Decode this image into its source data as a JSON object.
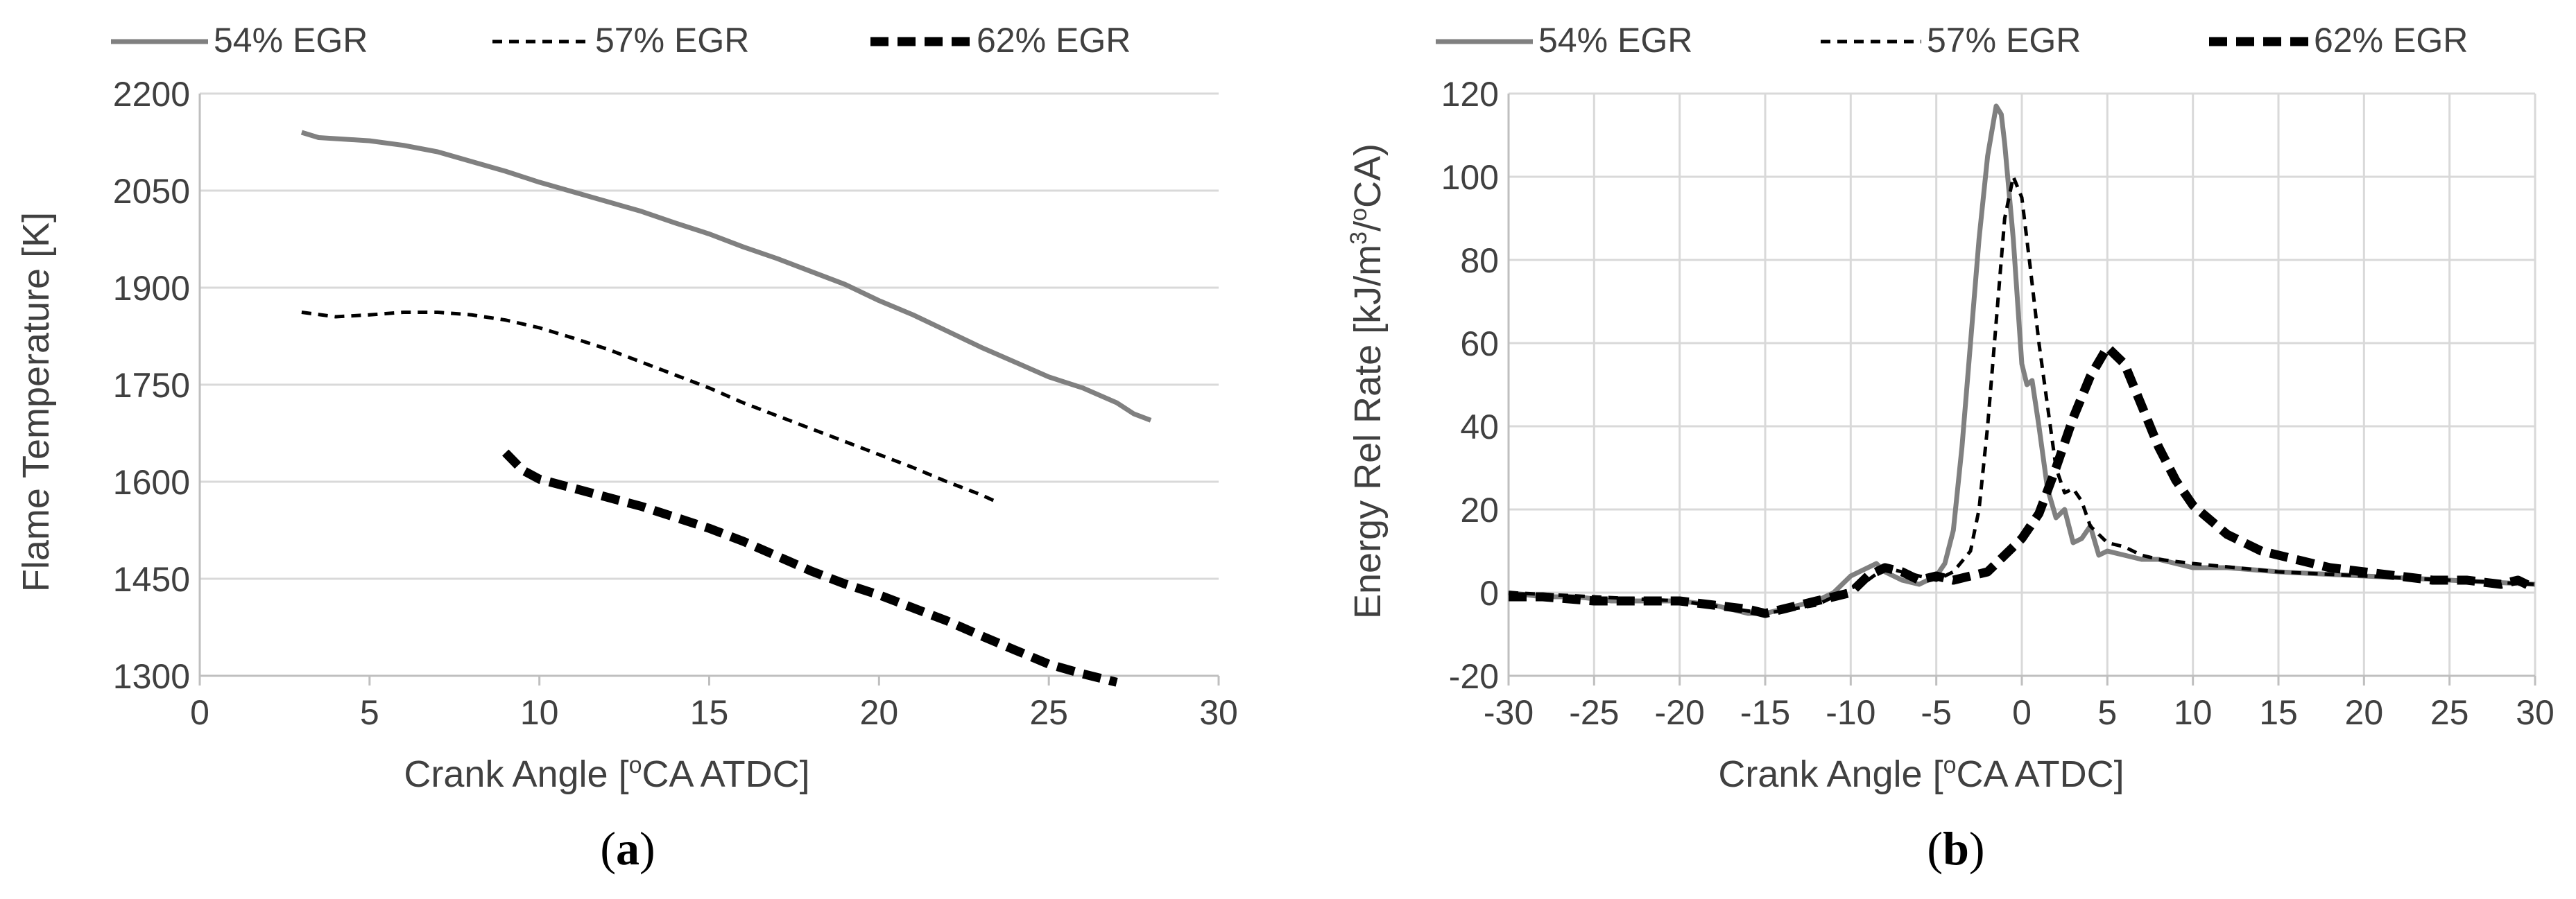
{
  "colors": {
    "series_54": "#808080",
    "series_57": "#000000",
    "series_62": "#000000",
    "grid": "#d9d9d9",
    "axis": "#bfbfbf",
    "text": "#404040"
  },
  "chart_data": [
    {
      "type": "line",
      "panel_label_open": "(",
      "panel_label_letter": "a",
      "panel_label_close": ")",
      "xlabel": "Crank Angle [",
      "xlabel_sup": "o",
      "xlabel_rest": "CA ATDC]",
      "ylabel": "Flame Temperature [K]",
      "xlim": [
        0,
        30
      ],
      "ylim": [
        1300,
        2200
      ],
      "xticks": [
        "0",
        "5",
        "10",
        "15",
        "20",
        "25",
        "30"
      ],
      "yticks": [
        "1300",
        "1450",
        "1600",
        "1750",
        "1900",
        "2050",
        "2200"
      ],
      "grid": "horizontal",
      "legend": "top",
      "series": [
        {
          "name": "54% EGR",
          "style": "solid-gray",
          "x": [
            3,
            3.5,
            5,
            6,
            7,
            8,
            9,
            10,
            11,
            12,
            13,
            14,
            15,
            16,
            17,
            18,
            19,
            20,
            21,
            22,
            23,
            24,
            25,
            26,
            27,
            27.5,
            28
          ],
          "y": [
            2140,
            2132,
            2127,
            2120,
            2110,
            2095,
            2080,
            2063,
            2048,
            2033,
            2018,
            2000,
            1983,
            1963,
            1945,
            1925,
            1905,
            1880,
            1858,
            1833,
            1808,
            1785,
            1762,
            1745,
            1722,
            1705,
            1695
          ]
        },
        {
          "name": "57% EGR",
          "style": "dashed-thin",
          "x": [
            3,
            4,
            5,
            6,
            7,
            8,
            9,
            10,
            11,
            12,
            13,
            14,
            15,
            16,
            17,
            18,
            19,
            20,
            21,
            22,
            23,
            23.5
          ],
          "y": [
            1862,
            1855,
            1858,
            1862,
            1862,
            1858,
            1850,
            1838,
            1822,
            1805,
            1785,
            1765,
            1745,
            1722,
            1702,
            1682,
            1662,
            1642,
            1622,
            1600,
            1580,
            1568
          ]
        },
        {
          "name": "62% EGR",
          "style": "dashed-thick",
          "x": [
            9,
            9.5,
            10,
            11,
            12,
            13,
            14,
            15,
            16,
            17,
            18,
            19,
            20,
            21,
            22,
            23,
            24,
            25,
            26,
            27
          ],
          "y": [
            1645,
            1618,
            1604,
            1590,
            1576,
            1562,
            1545,
            1528,
            1508,
            1485,
            1462,
            1442,
            1425,
            1405,
            1385,
            1362,
            1340,
            1318,
            1303,
            1290
          ]
        }
      ]
    },
    {
      "type": "line",
      "panel_label_open": "(",
      "panel_label_letter": "b",
      "panel_label_close": ")",
      "xlabel": "Crank Angle [",
      "xlabel_sup": "o",
      "xlabel_rest": "CA ATDC]",
      "ylabel_pre": "Energy Rel Rate [kJ/m",
      "ylabel_sup1": "3",
      "ylabel_mid": "/",
      "ylabel_sup2": "o",
      "ylabel_post": "CA)",
      "xlim": [
        -30,
        30
      ],
      "ylim": [
        -20,
        120
      ],
      "xticks": [
        "-30",
        "-25",
        "-20",
        "-15",
        "-10",
        "-5",
        "0",
        "5",
        "10",
        "15",
        "20",
        "25",
        "30"
      ],
      "yticks": [
        "-20",
        "0",
        "20",
        "40",
        "60",
        "80",
        "100",
        "120"
      ],
      "grid": "both",
      "legend": "top",
      "series": [
        {
          "name": "54% EGR",
          "style": "solid-gray",
          "x": [
            -30,
            -28,
            -26,
            -24,
            -22,
            -20,
            -18,
            -16,
            -15,
            -14,
            -12,
            -11,
            -10,
            -9,
            -8.5,
            -8,
            -7,
            -6,
            -5,
            -4.5,
            -4,
            -3.5,
            -3,
            -2.5,
            -2,
            -1.5,
            -1.2,
            -1,
            -0.5,
            0,
            0.3,
            0.6,
            1,
            1.5,
            2,
            2.5,
            3,
            3.5,
            4,
            4.5,
            5,
            6,
            7,
            8,
            10,
            12,
            15,
            20,
            25,
            30
          ],
          "y": [
            0,
            -1,
            -1,
            -2,
            -2,
            -2,
            -3,
            -5,
            -5,
            -4,
            -2,
            0,
            4,
            6,
            7,
            5,
            3,
            2,
            4,
            7,
            15,
            35,
            60,
            85,
            105,
            117,
            115,
            108,
            85,
            55,
            50,
            51,
            40,
            25,
            18,
            20,
            12,
            13,
            16,
            9,
            10,
            9,
            8,
            8,
            6,
            6,
            5,
            4,
            3,
            2
          ]
        },
        {
          "name": "57% EGR",
          "style": "dashed-thin",
          "x": [
            -30,
            -25,
            -20,
            -15,
            -12,
            -10,
            -9,
            -8,
            -7,
            -6,
            -5,
            -4,
            -3,
            -2.5,
            -2,
            -1.5,
            -1,
            -0.5,
            0,
            0.5,
            1,
            1.5,
            2,
            2.5,
            3,
            3.5,
            4,
            5,
            6,
            7,
            8,
            10,
            15,
            20,
            25,
            30
          ],
          "y": [
            0,
            -1,
            -2,
            -5,
            -3,
            1,
            3,
            6,
            5,
            4,
            3,
            5,
            10,
            20,
            40,
            65,
            90,
            100,
            95,
            78,
            60,
            45,
            30,
            24,
            25,
            22,
            16,
            12,
            11,
            9,
            8,
            7,
            5,
            4,
            3,
            2
          ]
        },
        {
          "name": "62% EGR",
          "style": "dashed-thick",
          "x": [
            -30,
            -28,
            -25,
            -22,
            -20,
            -18,
            -16,
            -15,
            -14,
            -13,
            -12,
            -11,
            -10,
            -9,
            -8,
            -7,
            -6,
            -5,
            -4,
            -3,
            -2,
            -1,
            0,
            1,
            2,
            3,
            4,
            5,
            6,
            7,
            8,
            9,
            10,
            12,
            14,
            16,
            18,
            20,
            22,
            24,
            26,
            28,
            29,
            30
          ],
          "y": [
            -1,
            -1,
            -2,
            -2,
            -2,
            -3,
            -4,
            -5,
            -4,
            -3,
            -2,
            -1,
            0,
            4,
            6,
            5,
            3,
            4,
            3,
            4,
            5,
            9,
            13,
            19,
            30,
            42,
            52,
            59,
            55,
            45,
            35,
            27,
            21,
            14,
            10,
            8,
            6,
            5,
            4,
            3,
            3,
            2,
            3,
            1
          ]
        }
      ]
    }
  ]
}
